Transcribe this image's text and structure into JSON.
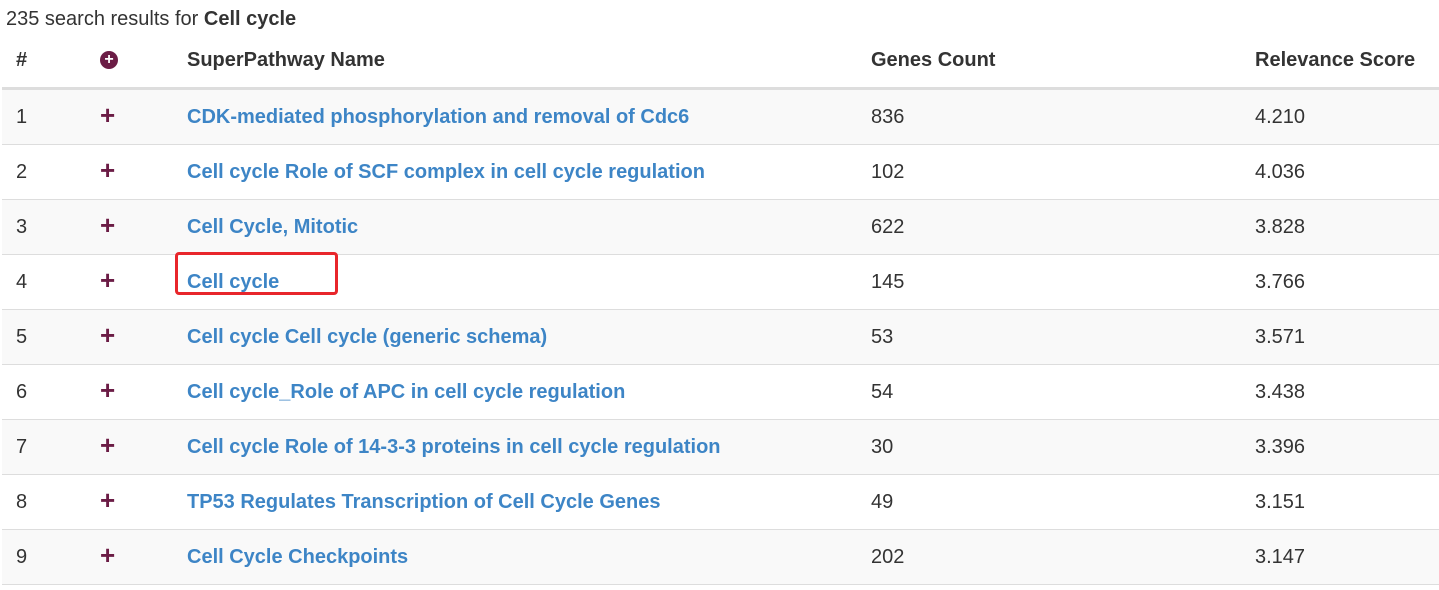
{
  "summary": {
    "prefix": "235 search results for ",
    "query": "Cell cycle"
  },
  "table": {
    "headers": {
      "num": "#",
      "expand_icon": "circle-plus-icon",
      "name": "SuperPathway Name",
      "genes": "Genes Count",
      "score": "Relevance Score"
    },
    "rows": [
      {
        "num": "1",
        "name": "CDK-mediated phosphorylation and removal of Cdc6",
        "genes": "836",
        "score": "4.210"
      },
      {
        "num": "2",
        "name": "Cell cycle Role of SCF complex in cell cycle regulation",
        "genes": "102",
        "score": "4.036"
      },
      {
        "num": "3",
        "name": "Cell Cycle, Mitotic",
        "genes": "622",
        "score": "3.828"
      },
      {
        "num": "4",
        "name": "Cell cycle",
        "genes": "145",
        "score": "3.766"
      },
      {
        "num": "5",
        "name": "Cell cycle Cell cycle (generic schema)",
        "genes": "53",
        "score": "3.571"
      },
      {
        "num": "6",
        "name": "Cell cycle_Role of APC in cell cycle regulation",
        "genes": "54",
        "score": "3.438"
      },
      {
        "num": "7",
        "name": "Cell cycle Role of 14-3-3 proteins in cell cycle regulation",
        "genes": "30",
        "score": "3.396"
      },
      {
        "num": "8",
        "name": "TP53 Regulates Transcription of Cell Cycle Genes",
        "genes": "49",
        "score": "3.151"
      },
      {
        "num": "9",
        "name": "Cell Cycle Checkpoints",
        "genes": "202",
        "score": "3.147"
      }
    ]
  },
  "colors": {
    "link": "#3d85c6",
    "icon": "#6b1c45",
    "highlight_box": "#e8262b"
  }
}
